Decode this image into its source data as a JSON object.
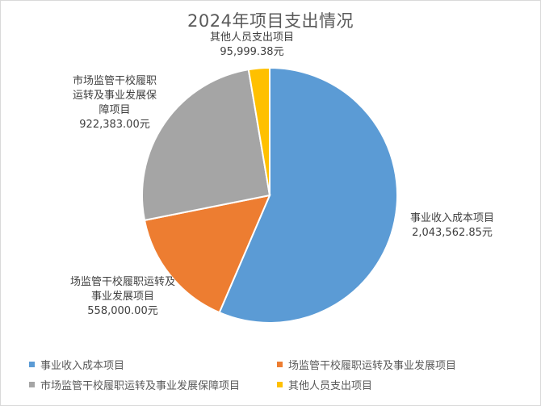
{
  "chart_data": {
    "type": "pie",
    "title": "2024年项目支出情况",
    "unit": "元",
    "slices": [
      {
        "name": "事业收入成本项目",
        "value": 2043562.85,
        "value_label": "2,043,562.85元",
        "color": "#5b9bd5"
      },
      {
        "name": "场监管干校履职运转及事业发展项目",
        "value": 558000.0,
        "value_label": "558,000.00元",
        "color": "#ed7d31"
      },
      {
        "name": "市场监管干校履职运转及事业发展保障项目",
        "value": 922383.0,
        "value_label": "922,383.00元",
        "color": "#a5a5a5"
      },
      {
        "name": "其他人员支出项目",
        "value": 95999.38,
        "value_label": "95,999.38元",
        "color": "#ffc000"
      }
    ],
    "legend_position": "bottom"
  }
}
